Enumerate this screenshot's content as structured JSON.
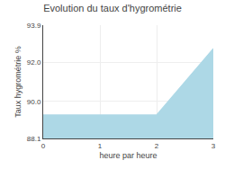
{
  "chart_data": {
    "type": "area",
    "title": "Evolution du taux d'hygrométrie",
    "x_label": "heure par heure",
    "y_label": "Taux hygrométrie %",
    "x": [
      0,
      2,
      3
    ],
    "values": [
      89.3,
      89.3,
      92.7
    ],
    "color": "#add8e6",
    "xlim": [
      0,
      3
    ],
    "ylim": [
      88.1,
      93.9
    ],
    "xticks": [
      0,
      1,
      2,
      3
    ],
    "yticks": [
      88.1,
      {
        "value": 90.0,
        "label": "90.0"
      },
      {
        "value": 92.0,
        "label": "92.0"
      },
      93.9
    ],
    "grid": true
  }
}
